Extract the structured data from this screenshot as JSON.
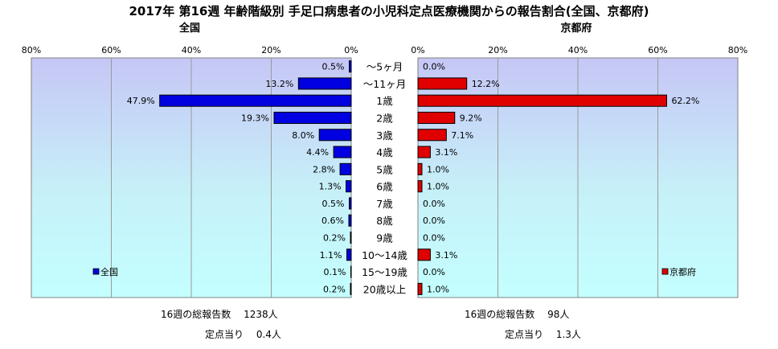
{
  "chart_data": {
    "type": "bar",
    "title": "2017年 第16週 年齢階級別 手足口病患者の小児科定点医療機関からの報告割合(全国、京都府)",
    "categories": [
      "～5ヶ月",
      "～11ヶ月",
      "1歳",
      "2歳",
      "3歳",
      "4歳",
      "5歳",
      "6歳",
      "7歳",
      "8歳",
      "9歳",
      "10～14歳",
      "15～19歳",
      "20歳以上"
    ],
    "axis": {
      "range": [
        0,
        80
      ],
      "ticks": [
        0,
        20,
        40,
        60,
        80
      ],
      "tick_labels": [
        "0%",
        "20%",
        "40%",
        "60%",
        "80%"
      ],
      "left_tick_labels": [
        "80%",
        "60%",
        "40%",
        "20%",
        "0%"
      ]
    },
    "series": [
      {
        "name": "全国",
        "panel_title": "全国",
        "legend": "全国",
        "color": "#0000e0",
        "values": [
          0.5,
          13.2,
          47.9,
          19.3,
          8.0,
          4.4,
          2.8,
          1.3,
          0.5,
          0.6,
          0.2,
          1.1,
          0.1,
          0.2
        ],
        "labels": [
          "0.5%",
          "13.2%",
          "47.9%",
          "19.3%",
          "8.0%",
          "4.4%",
          "2.8%",
          "1.3%",
          "0.5%",
          "0.6%",
          "0.2%",
          "1.1%",
          "0.1%",
          "0.2%"
        ]
      },
      {
        "name": "京都府",
        "panel_title": "京都府",
        "legend": "京都府",
        "color": "#e00000",
        "values": [
          0.0,
          12.2,
          62.2,
          9.2,
          7.1,
          3.1,
          1.0,
          1.0,
          0.0,
          0.0,
          0.0,
          3.1,
          0.0,
          1.0
        ],
        "labels": [
          "0.0%",
          "12.2%",
          "62.2%",
          "9.2%",
          "7.1%",
          "3.1%",
          "1.0%",
          "1.0%",
          "0.0%",
          "0.0%",
          "0.0%",
          "3.1%",
          "0.0%",
          "1.0%"
        ]
      }
    ]
  },
  "footer": {
    "national": {
      "total_text": "16週の総報告数　 1238人",
      "per_site_text": "定点当り　 0.4人"
    },
    "kyoto": {
      "total_text": "16週の総報告数　 98人",
      "per_site_text": "定点当り　 1.3人"
    }
  }
}
